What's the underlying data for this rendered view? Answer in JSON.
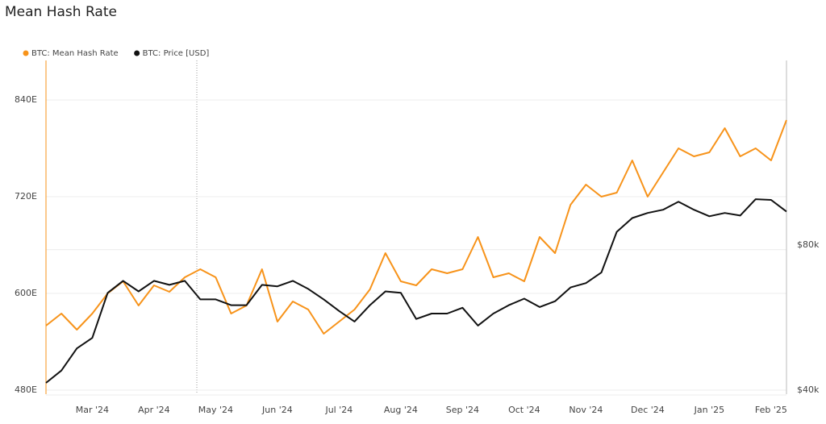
{
  "chart_data": {
    "type": "line",
    "title": "Mean Hash Rate",
    "categories": [
      null,
      null,
      null,
      "Mar '24",
      null,
      null,
      null,
      "Apr '24",
      null,
      null,
      null,
      "May '24",
      null,
      null,
      null,
      "Jun '24",
      null,
      null,
      null,
      "Jul '24",
      null,
      null,
      null,
      "Aug '24",
      null,
      null,
      null,
      "Sep '24",
      null,
      null,
      null,
      "Oct '24",
      null,
      null,
      null,
      "Nov '24",
      null,
      null,
      null,
      "Dec '24",
      null,
      null,
      null,
      "Jan '25",
      null,
      null,
      null,
      "Feb '25",
      null
    ],
    "series": [
      {
        "name": "BTC: Mean Hash Rate",
        "color": "#f7931a",
        "axis": "y",
        "values": [
          565,
          580,
          560,
          580,
          605,
          620,
          590,
          615,
          607,
          625,
          635,
          625,
          580,
          590,
          635,
          570,
          595,
          585,
          555,
          570,
          585,
          610,
          655,
          620,
          615,
          635,
          630,
          635,
          675,
          625,
          630,
          620,
          675,
          655,
          715,
          740,
          725,
          730,
          770,
          725,
          755,
          785,
          775,
          780,
          810,
          775,
          785,
          770,
          820
        ]
      },
      {
        "name": "BTC: Price [USD]",
        "color": "#111111",
        "axis": "y2",
        "values": [
          43100,
          46500,
          52600,
          55500,
          67900,
          71200,
          68300,
          71200,
          70100,
          71200,
          66100,
          66100,
          64500,
          64500,
          70100,
          69700,
          71200,
          69000,
          66100,
          62900,
          60000,
          64500,
          68300,
          67900,
          60700,
          62200,
          62200,
          63800,
          58900,
          62200,
          64500,
          66300,
          64000,
          65600,
          69400,
          70600,
          73500,
          84700,
          88500,
          89900,
          90800,
          93000,
          90800,
          89000,
          89900,
          89200,
          93700,
          93500,
          90300
        ]
      }
    ],
    "ylim": [
      480,
      894
    ],
    "yticks": [
      {
        "value": 480,
        "label": "480E"
      },
      {
        "value": 600,
        "label": "600E"
      },
      {
        "value": 720,
        "label": "720E"
      },
      {
        "value": 840,
        "label": "840E"
      }
    ],
    "y2lim": [
      40000,
      131900
    ],
    "y2ticks": [
      {
        "value": 40000,
        "label": "$40k"
      },
      {
        "value": 80000,
        "label": "$80k"
      }
    ],
    "grid": true,
    "legend": "top-left"
  }
}
